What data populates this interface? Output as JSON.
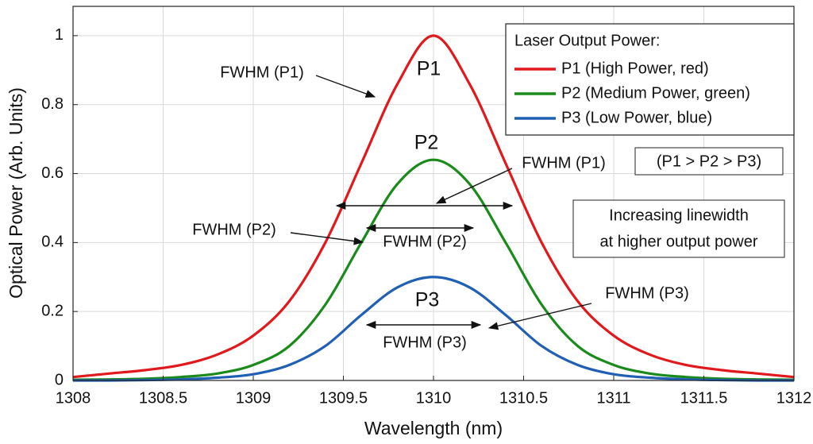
{
  "chart_data": {
    "type": "line",
    "xlabel": "Wavelength (nm)",
    "ylabel": "Optical Power (Arb. Units)",
    "x": [
      1308,
      1308.2,
      1308.4,
      1308.6,
      1308.8,
      1309,
      1309.2,
      1309.4,
      1309.6,
      1309.8,
      1310,
      1310.2,
      1310.4,
      1310.6,
      1310.8,
      1311,
      1311.2,
      1311.4,
      1311.6,
      1311.8,
      1312
    ],
    "series": [
      {
        "name": "P1 (High Power, red)",
        "color": "#e0191d",
        "values": [
          0.01,
          0.02,
          0.03,
          0.045,
          0.075,
          0.13,
          0.23,
          0.4,
          0.63,
          0.86,
          1,
          0.86,
          0.63,
          0.4,
          0.23,
          0.13,
          0.075,
          0.045,
          0.03,
          0.02,
          0.01
        ]
      },
      {
        "name": "P2 (Medium Power, green)",
        "color": "#1a8a1a",
        "values": [
          0.002,
          0.003,
          0.005,
          0.01,
          0.02,
          0.045,
          0.1,
          0.22,
          0.4,
          0.57,
          0.64,
          0.57,
          0.4,
          0.22,
          0.1,
          0.045,
          0.02,
          0.01,
          0.005,
          0.003,
          0.002
        ]
      },
      {
        "name": "P3 (Low Power, blue)",
        "color": "#1f5fb4",
        "values": [
          0,
          0,
          0.001,
          0.003,
          0.008,
          0.018,
          0.045,
          0.1,
          0.19,
          0.27,
          0.3,
          0.27,
          0.19,
          0.1,
          0.045,
          0.018,
          0.008,
          0.003,
          0.001,
          0,
          0
        ]
      }
    ],
    "xlim": [
      1308,
      1312
    ],
    "xticks": [
      1308,
      1308.5,
      1309,
      1309.5,
      1310,
      1310.5,
      1311,
      1311.5,
      1312
    ],
    "ylim": [
      0,
      1.085
    ],
    "yticks": [
      0,
      0.2,
      0.4,
      0.6,
      0.8,
      1
    ],
    "grid": true,
    "legend": "upper right",
    "legend_title": "Laser Output Power:",
    "annotations": [
      "FWHM (P1)",
      "P1",
      "P2",
      "P3",
      "FWHM (P1)",
      "FWHM (P2)",
      "FWHM (P2)",
      "FWHM (P3)",
      "FWHM (P3)",
      "(P1 > P2 > P3)"
    ],
    "note": [
      "Increasing linewidth",
      "at higher output power"
    ]
  }
}
